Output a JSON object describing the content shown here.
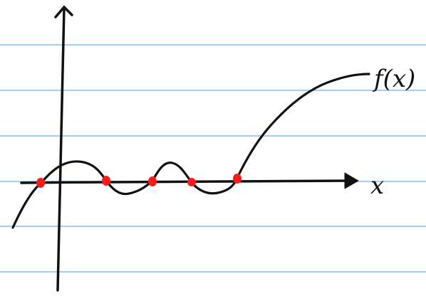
{
  "labels": {
    "function": "f(x)",
    "x_axis": "x"
  },
  "colors": {
    "background": "#ffffff",
    "ruled_line": "#6fb1e6",
    "ink": "#111111",
    "root_marker": "#ff1a1a"
  },
  "root_count": 5
}
